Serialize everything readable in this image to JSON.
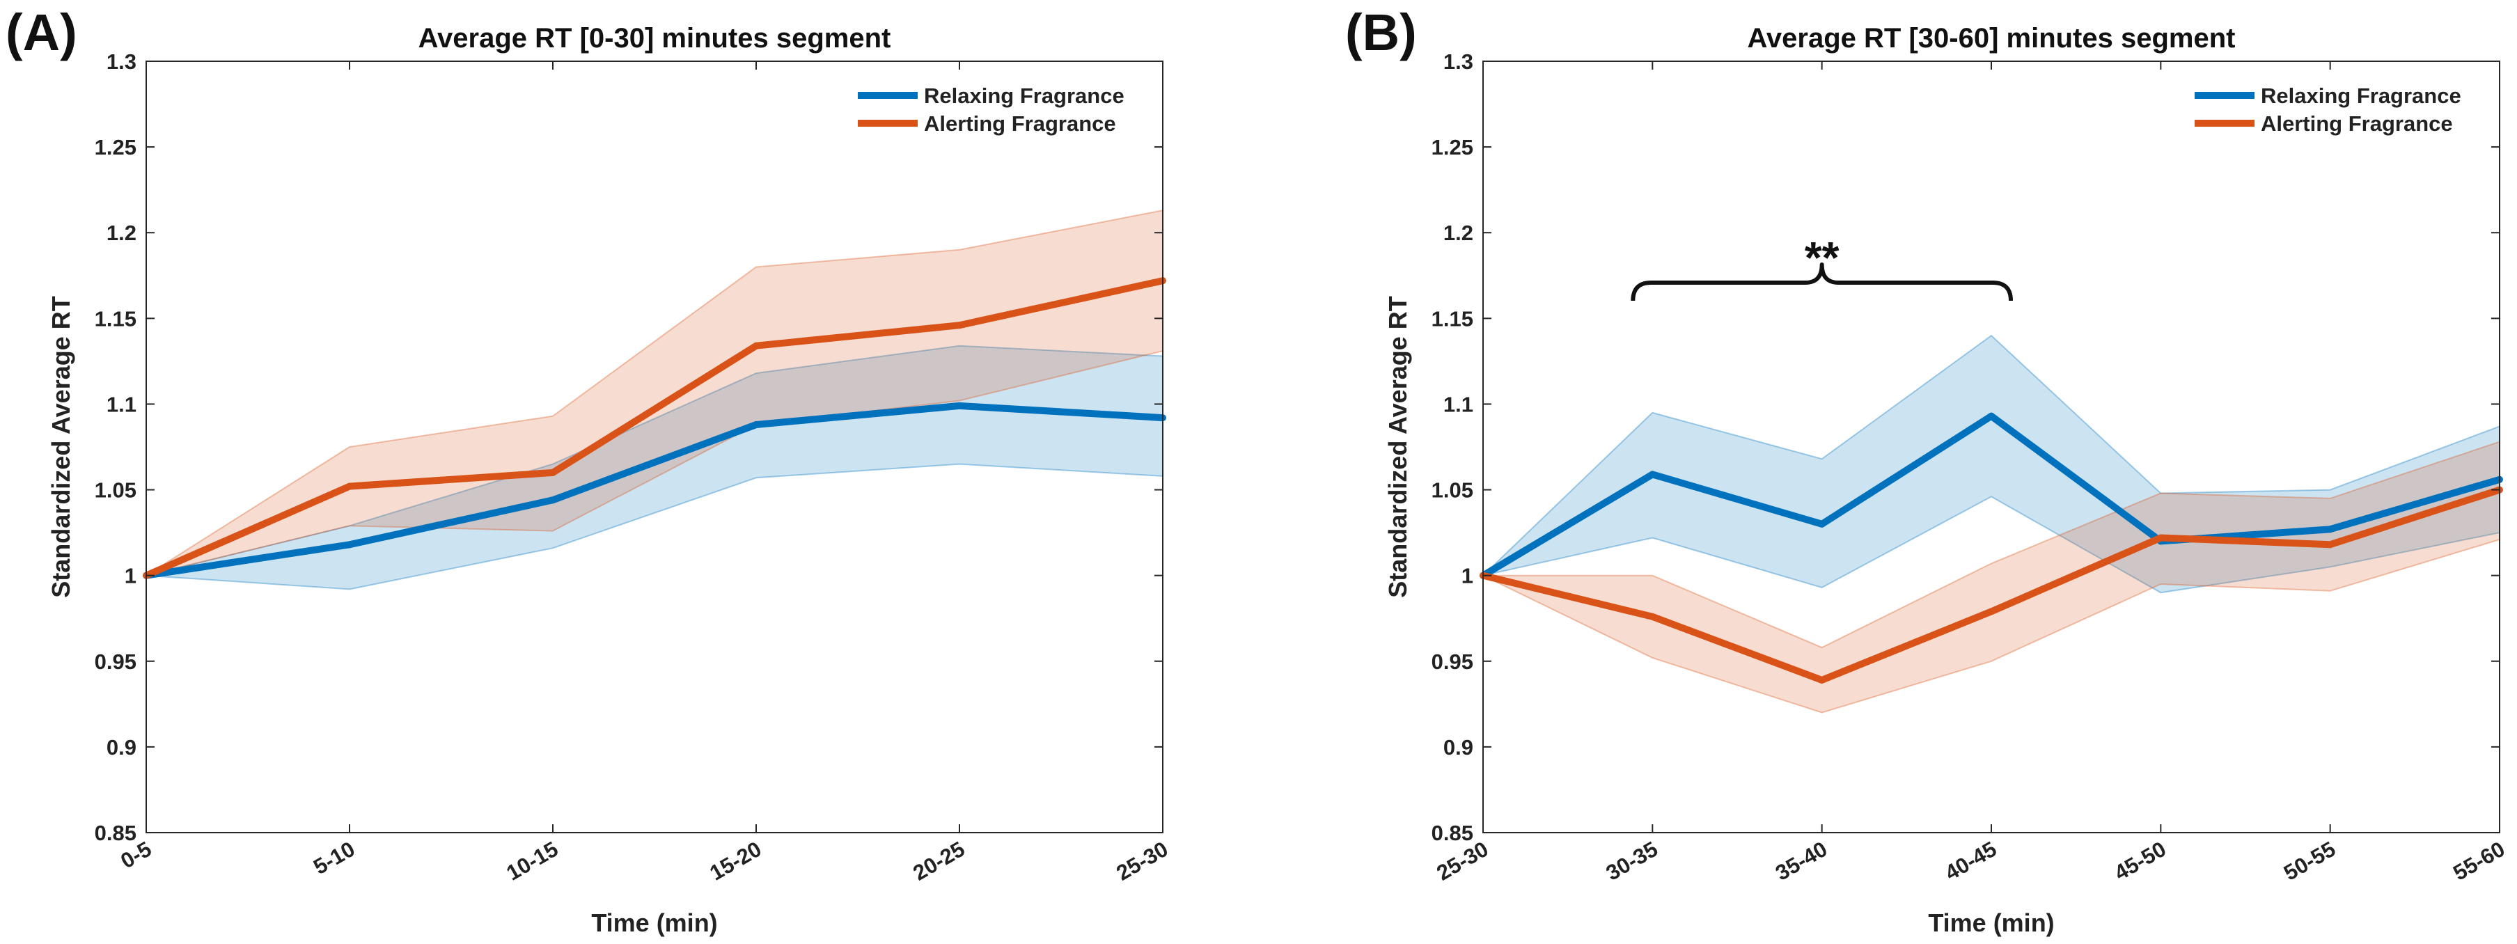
{
  "chart_data": [
    {
      "type": "line",
      "panel_label": "(A)",
      "title": "Average RT [0-30] minutes segment",
      "xlabel": "Time (min)",
      "ylabel": "Standardized Average RT",
      "categories": [
        "0-5",
        "5-10",
        "10-15",
        "15-20",
        "20-25",
        "25-30"
      ],
      "ylim": [
        0.85,
        1.3
      ],
      "yticks": [
        0.85,
        0.9,
        0.95,
        1,
        1.05,
        1.1,
        1.15,
        1.2,
        1.25,
        1.3
      ],
      "ytick_labels": [
        "0.85",
        "0.9",
        "0.95",
        "1",
        "1.05",
        "1.1",
        "1.15",
        "1.2",
        "1.25",
        "1.3"
      ],
      "legend_position": "top-right",
      "series": [
        {
          "name": "Relaxing Fragrance",
          "color": "#0072BD",
          "values": [
            1.0,
            1.018,
            1.044,
            1.088,
            1.099,
            1.092
          ],
          "lower": [
            1.0,
            0.992,
            1.016,
            1.057,
            1.065,
            1.058
          ],
          "upper": [
            1.0,
            1.029,
            1.065,
            1.118,
            1.134,
            1.128
          ]
        },
        {
          "name": "Alerting Fragrance",
          "color": "#D95319",
          "values": [
            1.0,
            1.052,
            1.06,
            1.134,
            1.146,
            1.172
          ],
          "lower": [
            1.0,
            1.029,
            1.026,
            1.088,
            1.102,
            1.131
          ],
          "upper": [
            1.0,
            1.075,
            1.093,
            1.18,
            1.19,
            1.213
          ]
        }
      ]
    },
    {
      "type": "line",
      "panel_label": "(B)",
      "title": "Average RT [30-60] minutes segment",
      "xlabel": "Time (min)",
      "ylabel": "Standardized Average RT",
      "categories": [
        "25-30",
        "30-35",
        "35-40",
        "40-45",
        "45-50",
        "50-55",
        "55-60"
      ],
      "ylim": [
        0.85,
        1.3
      ],
      "yticks": [
        0.85,
        0.9,
        0.95,
        1,
        1.05,
        1.1,
        1.15,
        1.2,
        1.25,
        1.3
      ],
      "ytick_labels": [
        "0.85",
        "0.9",
        "0.95",
        "1",
        "1.05",
        "1.1",
        "1.15",
        "1.2",
        "1.25",
        "1.3"
      ],
      "legend_position": "top-right",
      "annotation": {
        "text": "**",
        "from_category": "30-35",
        "to_category": "40-45"
      },
      "series": [
        {
          "name": "Relaxing Fragrance",
          "color": "#0072BD",
          "values": [
            1.0,
            1.059,
            1.03,
            1.093,
            1.02,
            1.027,
            1.056
          ],
          "lower": [
            1.0,
            1.022,
            0.993,
            1.046,
            0.99,
            1.005,
            1.025
          ],
          "upper": [
            1.0,
            1.095,
            1.068,
            1.14,
            1.048,
            1.05,
            1.087
          ]
        },
        {
          "name": "Alerting Fragrance",
          "color": "#D95319",
          "values": [
            1.0,
            0.976,
            0.939,
            0.979,
            1.022,
            1.018,
            1.05
          ],
          "lower": [
            1.0,
            0.952,
            0.92,
            0.95,
            0.995,
            0.991,
            1.021
          ],
          "upper": [
            1.0,
            1.0,
            0.958,
            1.007,
            1.048,
            1.045,
            1.078
          ]
        }
      ]
    }
  ]
}
